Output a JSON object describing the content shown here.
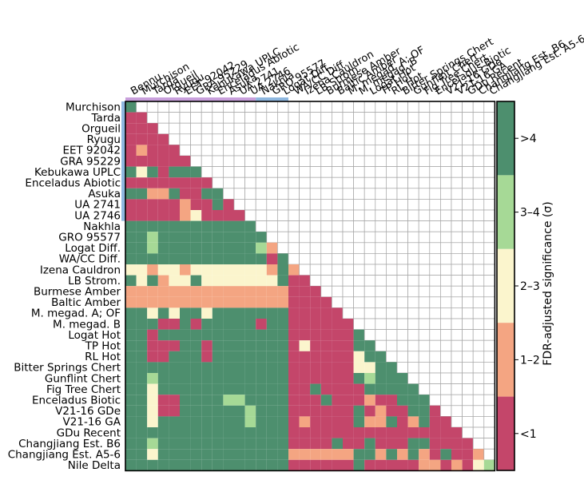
{
  "chart_data": {
    "type": "heatmap",
    "title": "",
    "colorbar_label": "FDR-adjusted significance (σ)",
    "colorbar_bins": [
      {
        "label": "<1",
        "color": "#c4466a"
      },
      {
        "label": "1–2",
        "color": "#f4a582"
      },
      {
        "label": "2–3",
        "color": "#fbf5cd"
      },
      {
        "label": "3–4",
        "color": "#a6d996"
      },
      {
        "label": ">4",
        "color": "#4d8f6e"
      }
    ],
    "row_labels": [
      "Murchison",
      "Tarda",
      "Orgueil",
      "Ryugu",
      "EET 92042",
      "GRA 95229",
      "Kebukawa UPLC",
      "Enceladus Abiotic",
      "Asuka",
      "UA 2741",
      "UA 2746",
      "Nakhla",
      "GRO 95577",
      "Logat Diff.",
      "WA/CC Diff.",
      "Izena Cauldron",
      "LB Strom.",
      "Burmese Amber",
      "Baltic Amber",
      "M. megad. A; OF",
      "M. megad. B",
      "Logat Hot",
      "TP Hot",
      "RL Hot",
      "Bitter Springs Chert",
      "Gunflint Chert",
      "Fig Tree Chert",
      "Enceladus Biotic",
      "V21-16 GDe",
      "V21-16 GA",
      "GDu Recent",
      "Changjiang Est. B6",
      "Changjiang Est. A5-6",
      "Nile Delta"
    ],
    "col_labels": [
      "Bennu",
      "Murchison",
      "Tarda",
      "Orgueil",
      "Ryugu",
      "EET 92042",
      "GRA 95229",
      "Kebukawa UPLC",
      "Enceladus Abiotic",
      "Asuka",
      "UA 2741",
      "UA 2746",
      "Nakhla",
      "GRO 95577",
      "Logat Diff.",
      "WA/CC Diff.",
      "Izena Cauldron",
      "LB Strom.",
      "Burmese Amber",
      "Baltic Amber",
      "M. megad. A; OF",
      "M. megad. B",
      "Logat Hot",
      "TP Hot",
      "RL Hot",
      "Bitter Springs Chert",
      "Gunflint Chert",
      "Fig Tree Chert",
      "Enceladus Biotic",
      "V21-16 GDe",
      "V21-16 GA",
      "GDu Recent",
      "Changjiang Est. B6",
      "Changjiang Est. A5-6"
    ],
    "group_colors": {
      "abiotic": "#c9a0dc",
      "intermediate": "#8fb8e0",
      "biotic": "#7fc79a"
    },
    "group_split_columns": [
      12,
      15
    ],
    "cell_bins": [
      [
        4
      ],
      [
        0,
        0
      ],
      [
        0,
        0,
        0
      ],
      [
        0,
        0,
        0,
        0
      ],
      [
        0,
        1,
        0,
        0,
        0
      ],
      [
        0,
        0,
        0,
        0,
        0,
        0
      ],
      [
        4,
        2,
        4,
        0,
        4,
        4,
        4
      ],
      [
        0,
        0,
        0,
        0,
        0,
        0,
        0,
        0
      ],
      [
        4,
        4,
        1,
        1,
        4,
        0,
        0,
        4,
        4
      ],
      [
        0,
        0,
        0,
        0,
        0,
        1,
        0,
        0,
        4,
        0
      ],
      [
        0,
        0,
        0,
        0,
        0,
        1,
        2,
        0,
        0,
        0,
        0
      ],
      [
        4,
        4,
        4,
        4,
        4,
        4,
        4,
        4,
        4,
        4,
        4,
        4
      ],
      [
        4,
        4,
        3,
        4,
        4,
        4,
        4,
        4,
        4,
        4,
        4,
        4,
        4
      ],
      [
        4,
        4,
        3,
        4,
        4,
        4,
        4,
        4,
        4,
        4,
        4,
        4,
        3,
        1
      ],
      [
        4,
        4,
        4,
        4,
        4,
        4,
        4,
        4,
        4,
        4,
        4,
        4,
        4,
        0,
        4
      ],
      [
        2,
        2,
        1,
        2,
        2,
        1,
        2,
        2,
        2,
        2,
        2,
        2,
        2,
        1,
        4,
        1
      ],
      [
        4,
        2,
        4,
        1,
        2,
        2,
        4,
        2,
        2,
        2,
        2,
        2,
        2,
        2,
        4,
        0,
        0
      ],
      [
        1,
        1,
        1,
        1,
        1,
        1,
        1,
        1,
        1,
        1,
        1,
        1,
        1,
        1,
        1,
        0,
        0,
        0
      ],
      [
        1,
        1,
        1,
        1,
        1,
        1,
        1,
        1,
        1,
        1,
        1,
        1,
        1,
        1,
        1,
        0,
        0,
        0,
        0
      ],
      [
        4,
        4,
        2,
        4,
        2,
        4,
        4,
        2,
        4,
        4,
        4,
        4,
        4,
        4,
        4,
        0,
        0,
        0,
        0,
        0
      ],
      [
        4,
        4,
        4,
        0,
        0,
        4,
        0,
        4,
        4,
        4,
        4,
        4,
        0,
        4,
        4,
        0,
        0,
        0,
        0,
        0,
        0
      ],
      [
        4,
        4,
        0,
        4,
        4,
        4,
        4,
        4,
        4,
        4,
        4,
        4,
        4,
        4,
        4,
        0,
        0,
        0,
        0,
        0,
        0,
        4
      ],
      [
        4,
        4,
        0,
        0,
        0,
        4,
        4,
        0,
        4,
        4,
        4,
        4,
        4,
        4,
        4,
        0,
        2,
        0,
        0,
        0,
        0,
        4,
        4
      ],
      [
        4,
        4,
        0,
        0,
        4,
        4,
        4,
        0,
        4,
        4,
        4,
        4,
        4,
        4,
        4,
        0,
        0,
        0,
        0,
        0,
        0,
        2,
        4,
        4
      ],
      [
        4,
        4,
        4,
        4,
        4,
        4,
        4,
        4,
        4,
        4,
        4,
        4,
        4,
        4,
        4,
        0,
        0,
        0,
        0,
        0,
        0,
        2,
        2,
        4,
        4
      ],
      [
        4,
        4,
        3,
        4,
        4,
        4,
        4,
        4,
        4,
        4,
        4,
        4,
        4,
        4,
        4,
        0,
        0,
        0,
        0,
        0,
        0,
        4,
        3,
        4,
        4,
        4
      ],
      [
        4,
        4,
        2,
        4,
        4,
        4,
        4,
        4,
        4,
        4,
        4,
        4,
        4,
        4,
        4,
        0,
        0,
        4,
        0,
        0,
        0,
        0,
        4,
        4,
        4,
        4,
        4
      ],
      [
        4,
        4,
        2,
        0,
        0,
        4,
        4,
        4,
        4,
        3,
        3,
        4,
        4,
        4,
        4,
        0,
        0,
        0,
        4,
        0,
        0,
        0,
        1,
        0,
        0,
        4,
        4,
        4
      ],
      [
        4,
        4,
        2,
        0,
        0,
        4,
        4,
        4,
        4,
        4,
        4,
        3,
        4,
        4,
        4,
        0,
        0,
        0,
        0,
        0,
        0,
        4,
        0,
        1,
        0,
        0,
        4,
        4,
        0
      ],
      [
        4,
        4,
        2,
        4,
        4,
        4,
        4,
        4,
        4,
        4,
        4,
        3,
        4,
        4,
        4,
        0,
        1,
        0,
        0,
        0,
        0,
        4,
        1,
        1,
        4,
        0,
        1,
        4,
        0,
        0
      ],
      [
        4,
        4,
        4,
        4,
        4,
        4,
        4,
        4,
        4,
        4,
        4,
        4,
        4,
        4,
        4,
        0,
        0,
        0,
        0,
        0,
        0,
        0,
        0,
        0,
        0,
        0,
        0,
        0,
        0,
        0,
        0
      ],
      [
        4,
        4,
        3,
        4,
        4,
        4,
        4,
        4,
        4,
        4,
        4,
        4,
        4,
        4,
        4,
        0,
        0,
        0,
        0,
        4,
        0,
        0,
        4,
        0,
        0,
        0,
        4,
        4,
        0,
        0,
        0,
        0
      ],
      [
        4,
        4,
        2,
        4,
        4,
        4,
        4,
        4,
        4,
        4,
        4,
        4,
        4,
        4,
        4,
        1,
        1,
        1,
        1,
        1,
        1,
        4,
        4,
        1,
        4,
        1,
        4,
        1,
        0,
        4,
        0,
        0,
        1
      ],
      [
        4,
        4,
        4,
        4,
        4,
        4,
        4,
        4,
        4,
        4,
        4,
        4,
        4,
        4,
        4,
        0,
        0,
        0,
        0,
        0,
        0,
        4,
        0,
        0,
        0,
        0,
        0,
        1,
        1,
        0,
        1,
        0,
        2,
        3
      ]
    ]
  }
}
